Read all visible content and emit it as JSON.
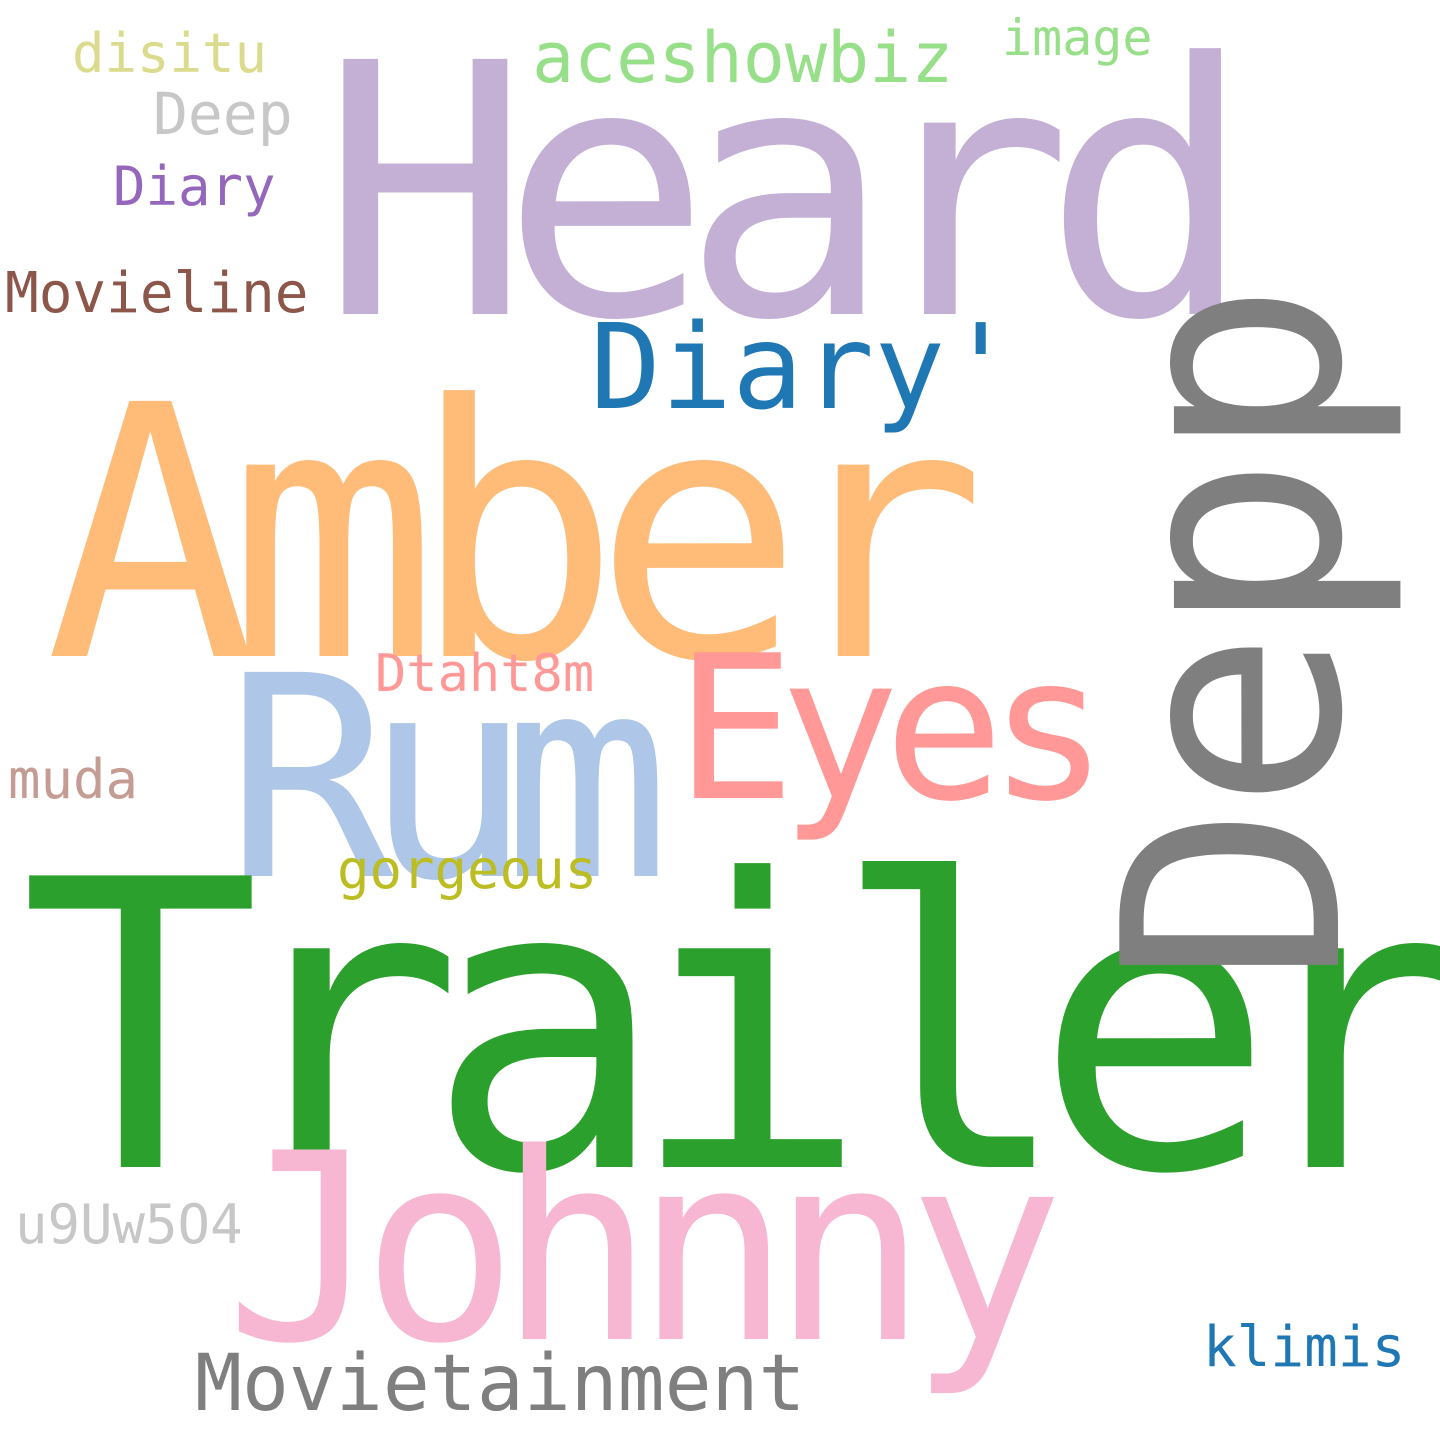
{
  "words": {
    "heard": {
      "text": "Heard",
      "color": "#c5b0d5"
    },
    "amber": {
      "text": "Amber",
      "color": "#ffbb78"
    },
    "trailer": {
      "text": "Trailer",
      "color": "#2ca02c"
    },
    "johnny": {
      "text": "Johnny",
      "color": "#f7b6d2"
    },
    "rum": {
      "text": "Rum",
      "color": "#aec7e8"
    },
    "eyes": {
      "text": "Eyes",
      "color": "#ff9896"
    },
    "depp": {
      "text": "Depp",
      "color": "#7f7f7f",
      "orientation": "vertical"
    },
    "diary_quote": {
      "text": "Diary'",
      "color": "#1f77b4"
    },
    "aceshowbiz": {
      "text": "aceshowbiz",
      "color": "#98df8a"
    },
    "image": {
      "text": "image",
      "color": "#98df8a"
    },
    "disitu": {
      "text": "disitu",
      "color": "#dbdb8d"
    },
    "deep": {
      "text": "Deep",
      "color": "#c7c7c7"
    },
    "diary_small": {
      "text": "Diary",
      "color": "#9467bd"
    },
    "movieline": {
      "text": "Movieline",
      "color": "#8c564b"
    },
    "dtaht8m": {
      "text": "Dtaht8m",
      "color": "#ff9896"
    },
    "muda": {
      "text": "muda",
      "color": "#c49c94"
    },
    "gorgeous": {
      "text": "gorgeous",
      "color": "#bcbd22"
    },
    "u9uw5o4": {
      "text": "u9Uw5O4",
      "color": "#c7c7c7"
    },
    "movietainment": {
      "text": "Movietainment",
      "color": "#7f7f7f"
    },
    "klimis": {
      "text": "klimis",
      "color": "#1f77b4"
    }
  }
}
